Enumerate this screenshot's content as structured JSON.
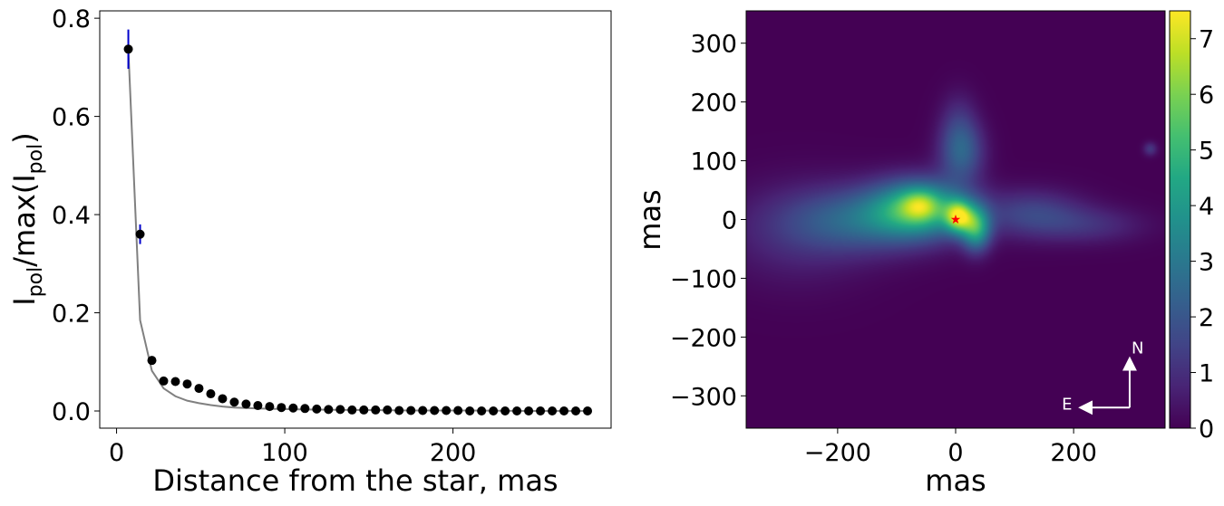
{
  "chart_data": [
    {
      "type": "scatter",
      "xlabel": "Distance from the star, mas",
      "ylabel": {
        "main": "I",
        "sub": "pol",
        "mid": "/max(I",
        "sub2": "pol",
        "end": ")"
      },
      "xlim": [
        -10,
        294
      ],
      "ylim": [
        -0.035,
        0.815
      ],
      "xticks": [
        0,
        100,
        200
      ],
      "yticks": [
        0.0,
        0.2,
        0.4,
        0.6,
        0.8
      ],
      "ytick_labels": [
        "0.0",
        "0.2",
        "0.4",
        "0.6",
        "0.8"
      ],
      "marker_color": "#000000",
      "errorbar_color": "#0000cc",
      "line_color": "#808080",
      "series": [
        {
          "kind": "points",
          "x": [
            7,
            14,
            21,
            28,
            35,
            42,
            49,
            56,
            63,
            70,
            77,
            84,
            91,
            98,
            105,
            112,
            119,
            126,
            133,
            140,
            147,
            154,
            161,
            168,
            175,
            182,
            189,
            196,
            203,
            210,
            217,
            224,
            231,
            238,
            245,
            252,
            259,
            266,
            273,
            280
          ],
          "y": [
            0.737,
            0.36,
            0.103,
            0.061,
            0.06,
            0.055,
            0.046,
            0.035,
            0.025,
            0.018,
            0.014,
            0.011,
            0.009,
            0.007,
            0.006,
            0.005,
            0.004,
            0.003,
            0.003,
            0.002,
            0.002,
            0.002,
            0.002,
            0.001,
            0.001,
            0.001,
            0.001,
            0.001,
            0.001,
            0.0,
            0.0,
            0.0,
            0.0,
            0.0,
            0.0,
            0.0,
            0.0,
            0.0,
            0.0,
            0.0
          ],
          "yerr": [
            0.04,
            0.02,
            0.0,
            0.0,
            0.0,
            0.0,
            0.0,
            0.0,
            0.0,
            0.0,
            0.0,
            0.0,
            0.0,
            0.0,
            0.0,
            0.0,
            0.0,
            0.0,
            0.0,
            0.0,
            0.0,
            0.0,
            0.0,
            0.0,
            0.0,
            0.0,
            0.0,
            0.0,
            0.0,
            0.0,
            0.0,
            0.0,
            0.0,
            0.0,
            0.0,
            0.0,
            0.0,
            0.0,
            0.0,
            0.0
          ]
        },
        {
          "kind": "line",
          "x": [
            7,
            14,
            21,
            28,
            35,
            42,
            49,
            56,
            63,
            70,
            84,
            98,
            112,
            140,
            175,
            210,
            245,
            280
          ],
          "y": [
            0.737,
            0.185,
            0.082,
            0.046,
            0.03,
            0.021,
            0.016,
            0.012,
            0.009,
            0.007,
            0.005,
            0.004,
            0.003,
            0.002,
            0.001,
            0.001,
            0.0,
            0.0
          ]
        }
      ],
      "grid": false
    },
    {
      "type": "heatmap",
      "xlabel": "mas",
      "ylabel": "mas",
      "xlim": [
        -355,
        355
      ],
      "ylim": [
        -355,
        355
      ],
      "xticks": [
        -200,
        0,
        200
      ],
      "xtick_labels": [
        "−200",
        "0",
        "200"
      ],
      "yticks": [
        -300,
        -200,
        -100,
        0,
        100,
        200,
        300
      ],
      "ytick_labels": [
        "−300",
        "−200",
        "−100",
        "0",
        "100",
        "200",
        "300"
      ],
      "colormap": "viridis",
      "colorbar": {
        "min": 0,
        "max": 7.5,
        "ticks": [
          0,
          1,
          2,
          3,
          4,
          5,
          6,
          7
        ],
        "tick_labels": [
          "0",
          "1",
          "2",
          "3",
          "4",
          "5",
          "6",
          "7"
        ]
      },
      "blobs": [
        {
          "x": -60,
          "y": 20,
          "sx": 55,
          "sy": 33,
          "amp": 4.4
        },
        {
          "x": -150,
          "y": 0,
          "sx": 90,
          "sy": 38,
          "amp": 2.3
        },
        {
          "x": -60,
          "y": 25,
          "sx": 22,
          "sy": 18,
          "amp": 1.9
        },
        {
          "x": -270,
          "y": -25,
          "sx": 90,
          "sy": 60,
          "amp": 0.8
        },
        {
          "x": 5,
          "y": 5,
          "sx": 16,
          "sy": 19,
          "amp": 4.8
        },
        {
          "x": 35,
          "y": -15,
          "sx": 17,
          "sy": 26,
          "amp": 4.1
        },
        {
          "x": 10,
          "y": 115,
          "sx": 26,
          "sy": 36,
          "amp": 2.3
        },
        {
          "x": 5,
          "y": 170,
          "sx": 22,
          "sy": 35,
          "amp": 0.8
        },
        {
          "x": 130,
          "y": 10,
          "sx": 60,
          "sy": 28,
          "amp": 1.5
        },
        {
          "x": 230,
          "y": -10,
          "sx": 65,
          "sy": 22,
          "amp": 0.9
        },
        {
          "x": 330,
          "y": 120,
          "sx": 8,
          "sy": 8,
          "amp": 1.2
        }
      ],
      "star_marker": {
        "x": 0,
        "y": 0,
        "color": "#ff0000"
      },
      "compass": {
        "north_label": "N",
        "east_label": "E",
        "origin_x": 295,
        "origin_y": -320,
        "length": 75,
        "color": "#ffffff"
      }
    }
  ]
}
